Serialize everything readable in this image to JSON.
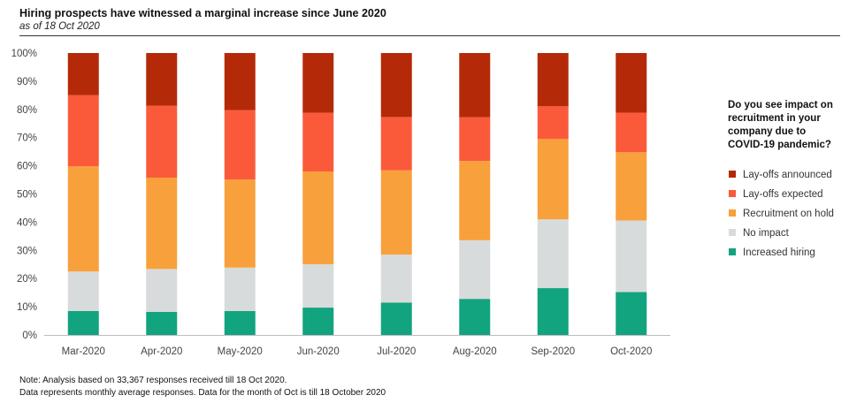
{
  "header": {
    "title": "Hiring prospects have witnessed a marginal increase since June 2020",
    "subtitle": "as of 18 Oct 2020"
  },
  "legend": {
    "question": "Do you see impact on recruitment in your company due to COVID-19 pandemic?"
  },
  "notes": {
    "line1": "Note: Analysis based on 33,367 responses received till 18 Oct 2020.",
    "line2": "Data represents monthly average responses. Data for the month of Oct is till 18 October 2020"
  },
  "chart_data": {
    "type": "bar",
    "stacked": true,
    "percent": true,
    "title": "Hiring prospects have witnessed a marginal increase since June 2020",
    "subtitle": "as of 18 Oct 2020",
    "categories": [
      "Mar-2020",
      "Apr-2020",
      "May-2020",
      "Jun-2020",
      "Jul-2020",
      "Aug-2020",
      "Sep-2020",
      "Oct-2020"
    ],
    "y_ticks": [
      "0%",
      "10%",
      "20%",
      "30%",
      "40%",
      "50%",
      "60%",
      "70%",
      "80%",
      "90%",
      "100%"
    ],
    "ylim": [
      0,
      100
    ],
    "legend_position": "right",
    "grid": false,
    "series": [
      {
        "name": "Increased hiring",
        "color": "#12a37f",
        "values": [
          8.5,
          8.2,
          8.5,
          9.7,
          11.5,
          12.8,
          16.6,
          15.2
        ]
      },
      {
        "name": "No impact",
        "color": "#d8dbdb",
        "values": [
          14.0,
          15.2,
          15.4,
          15.4,
          17.0,
          20.8,
          24.4,
          25.4
        ]
      },
      {
        "name": "Recruitment on hold",
        "color": "#f8a03c",
        "values": [
          37.3,
          32.4,
          31.2,
          32.9,
          29.9,
          28.1,
          28.5,
          24.2
        ]
      },
      {
        "name": "Lay-offs expected",
        "color": "#fb5a3a",
        "values": [
          25.3,
          25.5,
          24.6,
          20.8,
          18.9,
          15.5,
          11.6,
          14.0
        ]
      },
      {
        "name": "Lay-offs announced",
        "color": "#b42a08",
        "values": [
          14.9,
          18.7,
          20.3,
          21.2,
          22.7,
          22.8,
          18.9,
          21.2
        ]
      }
    ],
    "legend_order": [
      "Lay-offs announced",
      "Lay-offs expected",
      "Recruitment on hold",
      "No impact",
      "Increased hiring"
    ]
  }
}
